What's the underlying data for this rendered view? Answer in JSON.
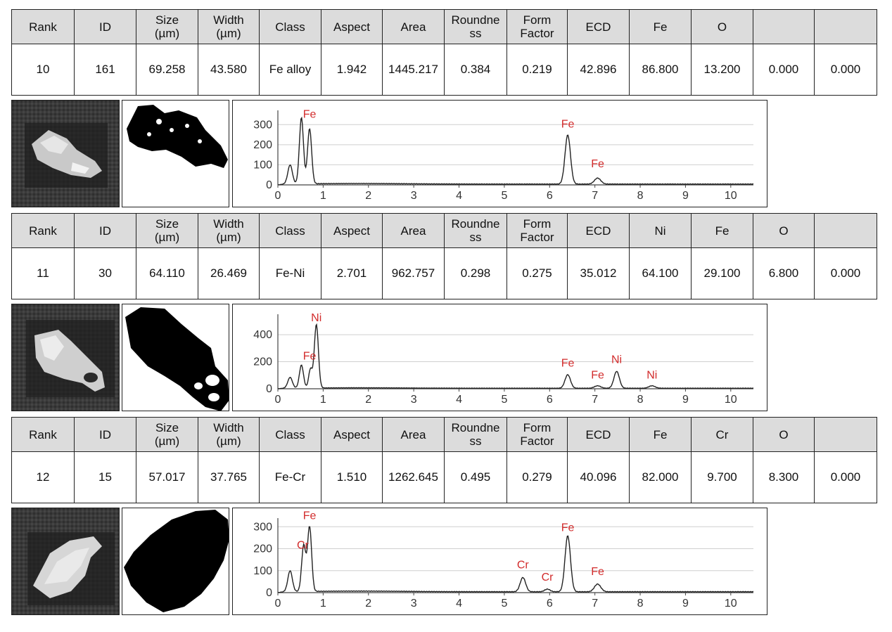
{
  "headers_common": [
    "Rank",
    "ID",
    "Size\n(µm)",
    "Width\n(µm)",
    "Class",
    "Aspect",
    "Area",
    "Roundne\nss",
    "Form\nFactor",
    "ECD"
  ],
  "blocks": [
    {
      "elements": [
        "Fe",
        "O",
        "",
        ""
      ],
      "values": [
        "10",
        "161",
        "69.258",
        "43.580",
        "Fe alloy",
        "1.942",
        "1445.217",
        "0.384",
        "0.219",
        "42.896",
        "86.800",
        "13.200",
        "0.000",
        "0.000"
      ],
      "chart_data": {
        "type": "line",
        "xlim": [
          0,
          10.5
        ],
        "ylim": [
          0,
          350
        ],
        "yticks": [
          0,
          100,
          200,
          300
        ],
        "xticks": [
          0,
          1,
          2,
          3,
          4,
          5,
          6,
          7,
          8,
          9,
          10
        ],
        "peaks": [
          {
            "x": 0.27,
            "h": 95,
            "w": 0.05
          },
          {
            "x": 0.52,
            "h": 330,
            "w": 0.045
          },
          {
            "x": 0.7,
            "h": 275,
            "w": 0.045
          },
          {
            "x": 6.4,
            "h": 245,
            "w": 0.06
          },
          {
            "x": 7.06,
            "h": 30,
            "w": 0.07
          }
        ],
        "labels": [
          {
            "text": "Fe",
            "x": 0.7,
            "y": 335
          },
          {
            "text": "Fe",
            "x": 6.4,
            "y": 285
          },
          {
            "text": "Fe",
            "x": 7.06,
            "y": 88
          }
        ]
      }
    },
    {
      "elements": [
        "Ni",
        "Fe",
        "O",
        ""
      ],
      "values": [
        "11",
        "30",
        "64.110",
        "26.469",
        "Fe-Ni",
        "2.701",
        "962.757",
        "0.298",
        "0.275",
        "35.012",
        "64.100",
        "29.100",
        "6.800",
        "0.000"
      ],
      "chart_data": {
        "type": "line",
        "xlim": [
          0,
          10.5
        ],
        "ylim": [
          0,
          520
        ],
        "yticks": [
          0,
          200,
          400
        ],
        "xticks": [
          0,
          1,
          2,
          3,
          4,
          5,
          6,
          7,
          8,
          9,
          10
        ],
        "peaks": [
          {
            "x": 0.27,
            "h": 80,
            "w": 0.05
          },
          {
            "x": 0.52,
            "h": 170,
            "w": 0.045
          },
          {
            "x": 0.72,
            "h": 140,
            "w": 0.04
          },
          {
            "x": 0.85,
            "h": 470,
            "w": 0.045
          },
          {
            "x": 6.4,
            "h": 100,
            "w": 0.06
          },
          {
            "x": 7.06,
            "h": 18,
            "w": 0.07
          },
          {
            "x": 7.48,
            "h": 125,
            "w": 0.06
          },
          {
            "x": 8.26,
            "h": 18,
            "w": 0.07
          }
        ],
        "labels": [
          {
            "text": "Ni",
            "x": 0.85,
            "y": 500
          },
          {
            "text": "Fe",
            "x": 0.7,
            "y": 215
          },
          {
            "text": "Fe",
            "x": 6.4,
            "y": 165
          },
          {
            "text": "Fe",
            "x": 7.06,
            "y": 75
          },
          {
            "text": "Ni",
            "x": 7.48,
            "y": 190
          },
          {
            "text": "Ni",
            "x": 8.26,
            "y": 75
          }
        ]
      }
    },
    {
      "elements": [
        "Fe",
        "Cr",
        "O",
        ""
      ],
      "values": [
        "12",
        "15",
        "57.017",
        "37.765",
        "Fe-Cr",
        "1.510",
        "1262.645",
        "0.495",
        "0.279",
        "40.096",
        "82.000",
        "9.700",
        "8.300",
        "0.000"
      ],
      "chart_data": {
        "type": "line",
        "xlim": [
          0,
          10.5
        ],
        "ylim": [
          0,
          320
        ],
        "yticks": [
          0,
          100,
          200,
          300
        ],
        "xticks": [
          0,
          1,
          2,
          3,
          4,
          5,
          6,
          7,
          8,
          9,
          10
        ],
        "peaks": [
          {
            "x": 0.27,
            "h": 95,
            "w": 0.05
          },
          {
            "x": 0.57,
            "h": 210,
            "w": 0.045
          },
          {
            "x": 0.7,
            "h": 295,
            "w": 0.045
          },
          {
            "x": 5.41,
            "h": 65,
            "w": 0.06
          },
          {
            "x": 5.95,
            "h": 12,
            "w": 0.06
          },
          {
            "x": 6.4,
            "h": 255,
            "w": 0.06
          },
          {
            "x": 7.06,
            "h": 35,
            "w": 0.07
          }
        ],
        "labels": [
          {
            "text": "Fe",
            "x": 0.7,
            "y": 335
          },
          {
            "text": "Cr",
            "x": 0.55,
            "y": 200
          },
          {
            "text": "Cr",
            "x": 5.41,
            "y": 110
          },
          {
            "text": "Cr",
            "x": 5.95,
            "y": 55
          },
          {
            "text": "Fe",
            "x": 6.4,
            "y": 280
          },
          {
            "text": "Fe",
            "x": 7.06,
            "y": 80
          }
        ]
      }
    }
  ]
}
